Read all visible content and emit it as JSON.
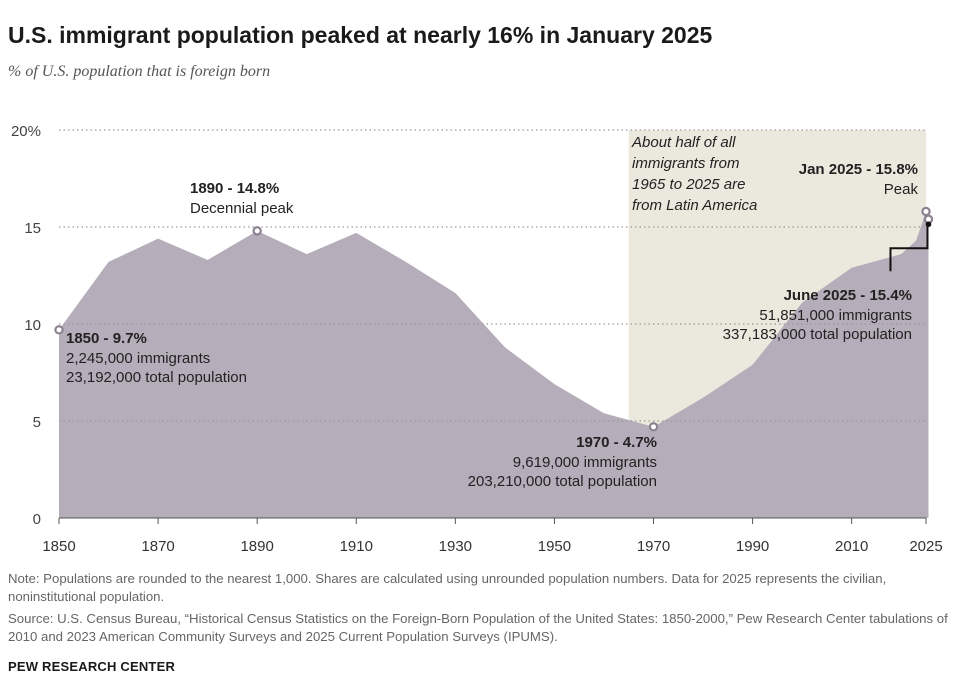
{
  "title": "U.S. immigrant population peaked at nearly 16% in January 2025",
  "subtitle": "% of U.S. population that is foreign born",
  "note": "Note: Populations are rounded to the nearest 1,000. Shares are calculated using unrounded population numbers. Data for 2025 represents the civilian, noninstitutional population.",
  "source": "Source: U.S. Census Bureau, “Historical Census Statistics on the Foreign-Born Population of the United States: 1850-2000,” Pew Research Center tabulations of 2010 and 2023 American Community Surveys and 2025 Current Population Surveys (IPUMS).",
  "brand": "PEW RESEARCH CENTER",
  "colors": {
    "area": "#b5adb9",
    "shade": "#ebe8dd",
    "grid": "#9a9a9a",
    "marker_fill": "#ffffff",
    "marker_stroke": "#8a8290",
    "text": "#222222"
  },
  "chart_data": {
    "type": "area",
    "title": "U.S. immigrant population peaked at nearly 16% in January 2025",
    "subtitle": "% of U.S. population that is foreign born",
    "xlabel": "",
    "ylabel": "",
    "xlim": [
      1850,
      2025
    ],
    "ylim": [
      0,
      20
    ],
    "grid": true,
    "x_ticks": [
      1850,
      1870,
      1890,
      1910,
      1930,
      1950,
      1970,
      1990,
      2010,
      2025
    ],
    "y_ticks": [
      {
        "value": 0,
        "label": "0"
      },
      {
        "value": 5,
        "label": "5"
      },
      {
        "value": 10,
        "label": "10"
      },
      {
        "value": 15,
        "label": "15"
      },
      {
        "value": 20,
        "label": "20%"
      }
    ],
    "series": [
      {
        "values": [
          [
            1850,
            9.7
          ],
          [
            1860,
            13.2
          ],
          [
            1870,
            14.4
          ],
          [
            1880,
            13.3
          ],
          [
            1890,
            14.8
          ],
          [
            1900,
            13.6
          ],
          [
            1910,
            14.7
          ],
          [
            1920,
            13.2
          ],
          [
            1930,
            11.6
          ],
          [
            1940,
            8.8
          ],
          [
            1950,
            6.9
          ],
          [
            1960,
            5.4
          ],
          [
            1970,
            4.7
          ],
          [
            1980,
            6.2
          ],
          [
            1990,
            7.9
          ],
          [
            2000,
            11.1
          ],
          [
            2010,
            12.9
          ],
          [
            2020,
            13.6
          ],
          [
            2023,
            14.3
          ],
          [
            2025.0,
            15.8
          ],
          [
            2025.5,
            15.4
          ]
        ]
      }
    ],
    "shaded_region": {
      "x": [
        1965,
        2025
      ],
      "label": "About half of all immigrants from 1965 to 2025 are from Latin America"
    },
    "annotations": [
      {
        "id": "a1850",
        "x": 1850,
        "y": 9.7,
        "bold": "1850 - 9.7%",
        "lines": [
          "2,245,000 immigrants",
          "23,192,000 total population"
        ]
      },
      {
        "id": "a1890",
        "x": 1890,
        "y": 14.8,
        "bold": "1890 - 14.8%",
        "lines": [
          "Decennial peak"
        ]
      },
      {
        "id": "a1970",
        "x": 1970,
        "y": 4.7,
        "bold": "1970 - 4.7%",
        "lines": [
          "9,619,000 immigrants",
          "203,210,000 total population"
        ]
      },
      {
        "id": "ajan2025",
        "x": 2025.0,
        "y": 15.8,
        "bold": "Jan 2025 - 15.8%",
        "lines": [
          "Peak"
        ]
      },
      {
        "id": "ajun2025",
        "x": 2025.5,
        "y": 15.4,
        "bold": "June 2025 - 15.4%",
        "lines": [
          "51,851,000 immigrants",
          "337,183,000 total population"
        ]
      }
    ]
  }
}
